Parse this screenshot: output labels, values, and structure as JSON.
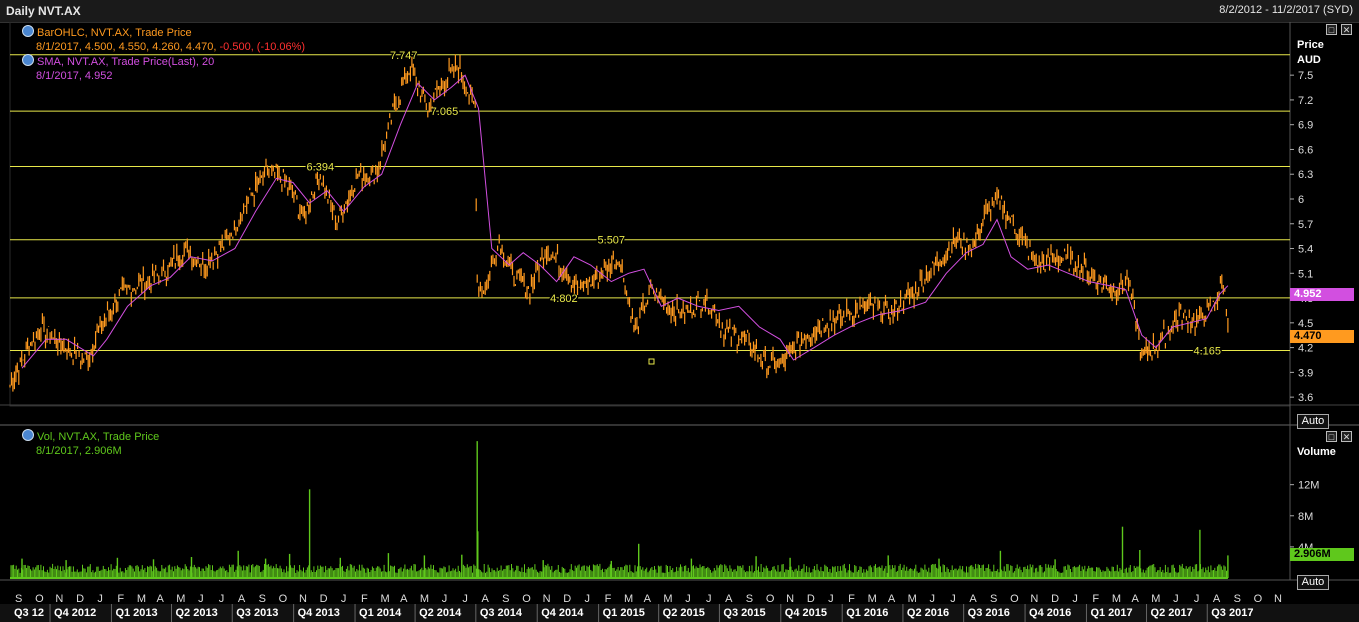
{
  "window": {
    "title": "Daily NVT.AX",
    "date_range": "8/2/2012 - 11/2/2017 (SYD)"
  },
  "price_pane": {
    "legend_line1": "BarOHLC, NVT.AX, Trade Price",
    "legend_line2a": "8/1/2017, 4.500, 4.550, 4.260, 4.470,",
    "legend_line2b": "-0.500, (-10.06%)",
    "legend_line3": "SMA, NVT.AX, Trade Price(Last), 20",
    "legend_line4": "8/1/2017, 4.952",
    "axis_title1": "Price",
    "axis_title2": "AUD",
    "last_price_label": "4.470",
    "sma_label": "4.952",
    "auto_label": "Auto"
  },
  "volume_pane": {
    "legend_line1": "Vol, NVT.AX, Trade Price",
    "legend_line2": "8/1/2017, 2.906M",
    "axis_title": "Volume",
    "last_volume_label": "2.906M",
    "auto_label": "Auto"
  },
  "colors": {
    "price_bars": "#ff9a1f",
    "sma": "#d24fe0",
    "volume": "#5fc81c",
    "hlines": "#e8e84a",
    "negative": "#ff3030"
  },
  "chart_data": [
    {
      "type": "line",
      "name": "price",
      "series": [
        {
          "name": "BarOHLC, NVT.AX, Trade Price",
          "color": "#ff9a1f",
          "x": [
            "2012-08-02",
            "2012-09-15",
            "2012-10-15",
            "2012-11-25",
            "2012-12-15",
            "2013-01-15",
            "2013-02-20",
            "2013-03-20",
            "2013-04-20",
            "2013-05-20",
            "2013-06-25",
            "2013-07-25",
            "2013-08-25",
            "2013-09-20",
            "2013-10-15",
            "2013-11-10",
            "2013-12-05",
            "2014-01-05",
            "2014-02-01",
            "2014-03-01",
            "2014-03-25",
            "2014-04-20",
            "2014-05-15",
            "2014-06-05",
            "2014-06-30",
            "2014-07-03",
            "2014-07-15",
            "2014-08-05",
            "2014-08-25",
            "2014-09-20",
            "2014-10-15",
            "2014-11-05",
            "2014-12-05",
            "2015-01-05",
            "2015-02-01",
            "2015-02-25",
            "2015-03-20",
            "2015-04-15",
            "2015-05-10",
            "2015-06-10",
            "2015-07-10",
            "2015-08-10",
            "2015-09-10",
            "2015-10-01",
            "2015-11-01",
            "2015-12-05",
            "2016-01-10",
            "2016-02-10",
            "2016-03-15",
            "2016-04-20",
            "2016-05-20",
            "2016-06-20",
            "2016-07-15",
            "2016-08-01",
            "2016-08-20",
            "2016-09-20",
            "2016-10-20",
            "2016-11-20",
            "2016-12-20",
            "2017-01-20",
            "2017-02-15",
            "2017-03-05",
            "2017-03-25",
            "2017-04-20",
            "2017-05-20",
            "2017-06-15",
            "2017-07-10",
            "2017-07-25",
            "2017-08-01"
          ],
          "y": [
            3.75,
            4.45,
            4.25,
            4.05,
            4.45,
            4.85,
            5.0,
            5.1,
            5.4,
            5.2,
            5.5,
            6.0,
            6.35,
            6.2,
            5.8,
            6.3,
            5.7,
            6.3,
            6.3,
            7.1,
            7.6,
            7.1,
            7.45,
            7.6,
            7.1,
            5.0,
            4.9,
            5.5,
            5.1,
            4.9,
            5.4,
            5.2,
            4.9,
            5.1,
            5.3,
            4.4,
            4.9,
            4.7,
            4.6,
            4.8,
            4.4,
            4.3,
            4.0,
            4.0,
            4.3,
            4.5,
            4.6,
            4.7,
            4.6,
            4.9,
            5.2,
            5.5,
            5.4,
            5.8,
            6.0,
            5.6,
            5.2,
            5.3,
            5.2,
            5.0,
            4.9,
            5.0,
            4.1,
            4.25,
            4.6,
            4.5,
            4.7,
            5.0,
            4.47
          ]
        },
        {
          "name": "SMA, NVT.AX, Trade Price(Last), 20",
          "color": "#d24fe0",
          "x": [
            "2012-08-20",
            "2012-09-25",
            "2012-10-25",
            "2012-12-05",
            "2012-12-25",
            "2013-01-25",
            "2013-03-01",
            "2013-03-30",
            "2013-04-30",
            "2013-06-01",
            "2013-07-05",
            "2013-08-05",
            "2013-09-05",
            "2013-09-30",
            "2013-10-25",
            "2013-11-20",
            "2013-12-15",
            "2014-01-15",
            "2014-02-10",
            "2014-03-10",
            "2014-04-05",
            "2014-04-30",
            "2014-05-25",
            "2014-06-15",
            "2014-07-05",
            "2014-07-25",
            "2014-08-20",
            "2014-09-10",
            "2014-10-05",
            "2014-10-30",
            "2014-11-25",
            "2014-12-20",
            "2015-01-20",
            "2015-02-15",
            "2015-03-10",
            "2015-04-05",
            "2015-04-30",
            "2015-05-30",
            "2015-06-30",
            "2015-07-30",
            "2015-08-30",
            "2015-09-30",
            "2015-10-20",
            "2015-11-20",
            "2015-12-20",
            "2016-01-25",
            "2016-02-25",
            "2016-03-30",
            "2016-05-05",
            "2016-06-05",
            "2016-07-05",
            "2016-07-30",
            "2016-08-20",
            "2016-09-10",
            "2016-10-05",
            "2016-11-05",
            "2016-12-05",
            "2017-01-05",
            "2017-02-05",
            "2017-03-01",
            "2017-03-25",
            "2017-04-15",
            "2017-05-10",
            "2017-06-05",
            "2017-06-30",
            "2017-07-20",
            "2017-08-01"
          ],
          "y": [
            3.95,
            4.3,
            4.3,
            4.1,
            4.3,
            4.7,
            4.95,
            5.05,
            5.3,
            5.25,
            5.4,
            5.85,
            6.25,
            6.2,
            5.95,
            6.1,
            5.85,
            6.15,
            6.3,
            6.9,
            7.4,
            7.2,
            7.35,
            7.5,
            7.1,
            5.4,
            5.2,
            5.35,
            5.2,
            5.0,
            5.3,
            5.2,
            5.0,
            5.1,
            5.15,
            4.7,
            4.8,
            4.7,
            4.65,
            4.7,
            4.45,
            4.3,
            4.05,
            4.2,
            4.35,
            4.5,
            4.6,
            4.65,
            4.75,
            5.1,
            5.35,
            5.45,
            5.75,
            5.3,
            5.15,
            5.2,
            5.1,
            5.0,
            4.95,
            4.9,
            4.35,
            4.2,
            4.45,
            4.5,
            4.55,
            4.85,
            4.95
          ]
        }
      ],
      "axis": {
        "ylabel": "Price AUD",
        "yticks": [
          3.6,
          3.9,
          4.2,
          4.5,
          4.8,
          5.1,
          5.4,
          5.7,
          6,
          6.3,
          6.6,
          6.9,
          7.2,
          7.5
        ],
        "ylim": [
          3.42,
          7.95
        ]
      },
      "horizontal_lines": [
        7.747,
        7.065,
        6.394,
        5.507,
        4.802,
        4.165
      ],
      "hline_labels": [
        "7.747",
        "7.065",
        "6.394",
        "5.507",
        "4.802",
        "4.165"
      ],
      "grid": false
    },
    {
      "type": "bar",
      "name": "volume",
      "series": [
        {
          "name": "Vol, NVT.AX, Trade Price",
          "color": "#5fc81c"
        }
      ],
      "baseline_approx_M": 1.3,
      "spikes": [
        {
          "date": "2012-08-20",
          "value_M": 2.5
        },
        {
          "date": "2012-10-25",
          "value_M": 2.3
        },
        {
          "date": "2013-01-10",
          "value_M": 2.6
        },
        {
          "date": "2013-03-05",
          "value_M": 2.4
        },
        {
          "date": "2013-05-01",
          "value_M": 2.7
        },
        {
          "date": "2013-07-10",
          "value_M": 3.5
        },
        {
          "date": "2013-08-20",
          "value_M": 2.5
        },
        {
          "date": "2013-09-25",
          "value_M": 3.1
        },
        {
          "date": "2013-10-25",
          "value_M": 11.4
        },
        {
          "date": "2013-12-10",
          "value_M": 2.6
        },
        {
          "date": "2014-02-20",
          "value_M": 3.2
        },
        {
          "date": "2014-04-15",
          "value_M": 2.9
        },
        {
          "date": "2014-06-10",
          "value_M": 3.0
        },
        {
          "date": "2014-07-03",
          "value_M": 17.6
        },
        {
          "date": "2014-07-04",
          "value_M": 6.0
        },
        {
          "date": "2014-10-10",
          "value_M": 2.3
        },
        {
          "date": "2015-01-20",
          "value_M": 2.2
        },
        {
          "date": "2015-03-02",
          "value_M": 4.4
        },
        {
          "date": "2015-05-20",
          "value_M": 2.5
        },
        {
          "date": "2015-08-25",
          "value_M": 2.8
        },
        {
          "date": "2015-10-15",
          "value_M": 2.6
        },
        {
          "date": "2016-03-10",
          "value_M": 2.9
        },
        {
          "date": "2016-05-25",
          "value_M": 2.5
        },
        {
          "date": "2016-08-25",
          "value_M": 3.5
        },
        {
          "date": "2016-11-15",
          "value_M": 2.4
        },
        {
          "date": "2017-02-24",
          "value_M": 6.6
        },
        {
          "date": "2017-03-22",
          "value_M": 3.6
        },
        {
          "date": "2017-06-20",
          "value_M": 6.2
        },
        {
          "date": "2017-08-01",
          "value_M": 2.906
        }
      ],
      "axis": {
        "ylabel": "Volume",
        "yticks": [
          4,
          8,
          12
        ],
        "ytick_labels": [
          "4M",
          "8M",
          "12M"
        ],
        "ylim": [
          0,
          18
        ]
      },
      "grid": false
    }
  ],
  "x_axis": {
    "start_date": "2012-08-02",
    "end_date": "2017-11-02",
    "month_letters": [
      "S",
      "O",
      "N",
      "D",
      "J",
      "F",
      "M",
      "A",
      "M",
      "J",
      "J",
      "A",
      "S",
      "O",
      "N",
      "D",
      "J",
      "F",
      "M",
      "A",
      "M",
      "J",
      "J",
      "A",
      "S",
      "O",
      "N",
      "D",
      "J",
      "F",
      "M",
      "A",
      "M",
      "J",
      "J",
      "A",
      "S",
      "O",
      "N",
      "D",
      "J",
      "F",
      "M",
      "A",
      "M",
      "J",
      "J",
      "A",
      "S",
      "O",
      "N",
      "D",
      "J",
      "F",
      "M",
      "A",
      "M",
      "J",
      "J",
      "A",
      "S",
      "O",
      "N"
    ],
    "quarter_labels": [
      "Q3 12",
      "Q4 2012",
      "Q1 2013",
      "Q2 2013",
      "Q3 2013",
      "Q4 2013",
      "Q1 2014",
      "Q2 2014",
      "Q3 2014",
      "Q4 2014",
      "Q1 2015",
      "Q2 2015",
      "Q3 2015",
      "Q4 2015",
      "Q1 2016",
      "Q2 2016",
      "Q3 2016",
      "Q4 2016",
      "Q1 2017",
      "Q2 2017",
      "Q3 2017"
    ]
  }
}
